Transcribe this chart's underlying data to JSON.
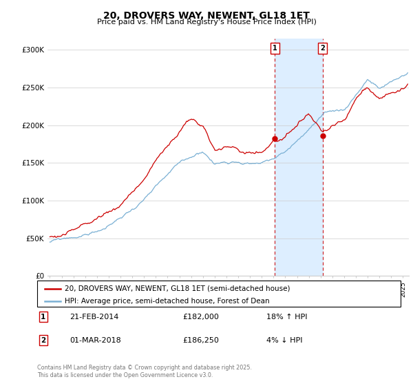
{
  "title": "20, DROVERS WAY, NEWENT, GL18 1ET",
  "subtitle": "Price paid vs. HM Land Registry's House Price Index (HPI)",
  "ylabel_ticks": [
    "£0",
    "£50K",
    "£100K",
    "£150K",
    "£200K",
    "£250K",
    "£300K"
  ],
  "ytick_values": [
    0,
    50000,
    100000,
    150000,
    200000,
    250000,
    300000
  ],
  "ylim": [
    0,
    315000
  ],
  "xlim_start": 1994.8,
  "xlim_end": 2025.5,
  "legend_line1": "20, DROVERS WAY, NEWENT, GL18 1ET (semi-detached house)",
  "legend_line2": "HPI: Average price, semi-detached house, Forest of Dean",
  "marker1_date": "21-FEB-2014",
  "marker1_price": "£182,000",
  "marker1_hpi": "18% ↑ HPI",
  "marker1_x": 2014.12,
  "marker1_y": 182000,
  "marker2_date": "01-MAR-2018",
  "marker2_price": "£186,250",
  "marker2_hpi": "4% ↓ HPI",
  "marker2_x": 2018.17,
  "marker2_y": 186250,
  "red_color": "#cc0000",
  "blue_color": "#7ab0d4",
  "shade_color": "#ddeeff",
  "background_color": "#ffffff",
  "grid_color": "#cccccc",
  "footnote": "Contains HM Land Registry data © Crown copyright and database right 2025.\nThis data is licensed under the Open Government Licence v3.0."
}
